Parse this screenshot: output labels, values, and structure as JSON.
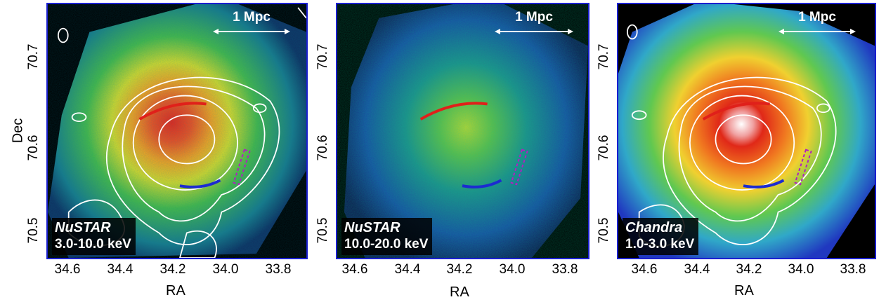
{
  "figure": {
    "y_axis_title": "Dec",
    "x_axis_title": "RA",
    "scale_bar_label": "1 Mpc",
    "x_ticks": [
      "34.6",
      "34.4",
      "34.2",
      "34.0",
      "33.8"
    ],
    "y_ticks": [
      "70.7",
      "70.6",
      "70.5"
    ]
  },
  "panels": [
    {
      "instrument": "NuSTAR",
      "band": "3.0-10.0 keV"
    },
    {
      "instrument": "NuSTAR",
      "band": "10.0-20.0 keV"
    },
    {
      "instrument": "Chandra",
      "band": "1.0-3.0 keV"
    }
  ],
  "colors": {
    "frame": "#1a1fd0",
    "contours": "#ffffff",
    "relic_north": "#e0201a",
    "relic_south": "#1c2bd0",
    "region_dashed": "#b020c0"
  }
}
